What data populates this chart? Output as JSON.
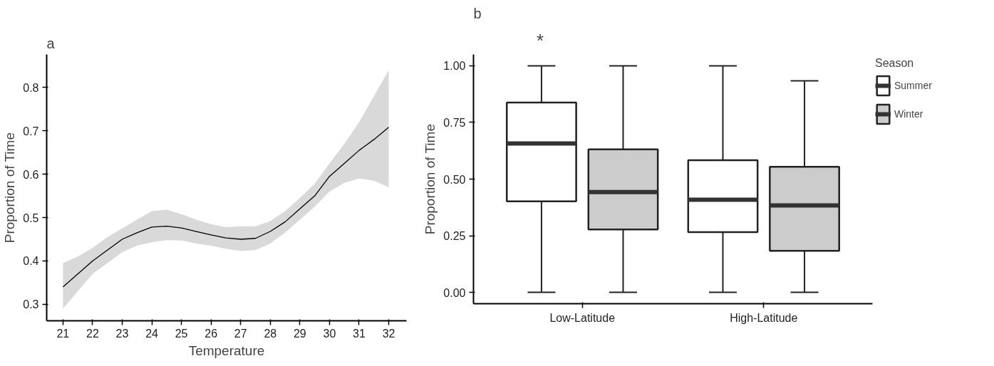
{
  "chart_data": [
    {
      "type": "line",
      "title": "a",
      "xlabel": "Temperature",
      "ylabel": "Proportion of Time",
      "xlim": [
        20.45,
        32.6
      ],
      "ylim": [
        0.262,
        0.876
      ],
      "xticks": [
        21,
        22,
        23,
        24,
        25,
        26,
        27,
        28,
        29,
        30,
        31,
        32
      ],
      "yticks": [
        0.3,
        0.4,
        0.5,
        0.6,
        0.7,
        0.8
      ],
      "grid": false,
      "legend": false,
      "x": [
        21,
        21.5,
        22,
        22.5,
        23,
        23.5,
        24,
        24.5,
        25,
        25.5,
        26,
        26.5,
        27,
        27.5,
        28,
        28.5,
        29,
        29.5,
        30,
        30.5,
        31,
        31.5,
        32
      ],
      "series": [
        {
          "color": "#000000",
          "values": [
            0.34,
            0.37,
            0.4,
            0.425,
            0.45,
            0.465,
            0.478,
            0.48,
            0.476,
            0.468,
            0.46,
            0.453,
            0.45,
            0.452,
            0.468,
            0.49,
            0.52,
            0.55,
            0.595,
            0.625,
            0.655,
            0.68,
            0.708
          ],
          "lower": [
            0.29,
            0.33,
            0.37,
            0.395,
            0.42,
            0.435,
            0.443,
            0.448,
            0.447,
            0.44,
            0.435,
            0.428,
            0.423,
            0.425,
            0.44,
            0.465,
            0.495,
            0.525,
            0.56,
            0.58,
            0.59,
            0.585,
            0.57
          ],
          "upper": [
            0.395,
            0.41,
            0.43,
            0.455,
            0.475,
            0.495,
            0.515,
            0.518,
            0.508,
            0.495,
            0.485,
            0.478,
            0.48,
            0.48,
            0.492,
            0.515,
            0.545,
            0.578,
            0.625,
            0.67,
            0.72,
            0.78,
            0.84
          ]
        }
      ]
    },
    {
      "type": "box",
      "title": "b",
      "ylabel": "Proportion of Time",
      "legend_title": "Season",
      "legend": "top right",
      "grid": false,
      "ylim": [
        -0.05,
        1.05
      ],
      "yticks": [
        {
          "value": 0,
          "label": "0.00"
        },
        {
          "value": 0.25,
          "label": "0.25"
        },
        {
          "value": 0.5,
          "label": "0.50"
        },
        {
          "value": 0.75,
          "label": "0.75"
        },
        {
          "value": 1,
          "label": "1.00"
        }
      ],
      "categories": [
        "Low-Latitude",
        "High-Latitude"
      ],
      "annotations": [
        "*"
      ],
      "series": [
        {
          "name": "Summer",
          "color": "#ffffff",
          "boxes": [
            {
              "low": 0,
              "q1": 0.402,
              "median": 0.657,
              "q3": 0.838,
              "high": 1.0
            },
            {
              "low": 0,
              "q1": 0.266,
              "median": 0.409,
              "q3": 0.583,
              "high": 1.0
            }
          ]
        },
        {
          "name": "Winter",
          "color": "#cccccc",
          "boxes": [
            {
              "low": 0,
              "q1": 0.278,
              "median": 0.443,
              "q3": 0.631,
              "high": 1.0
            },
            {
              "low": 0,
              "q1": 0.183,
              "median": 0.384,
              "q3": 0.554,
              "high": 0.934
            }
          ]
        }
      ]
    }
  ]
}
